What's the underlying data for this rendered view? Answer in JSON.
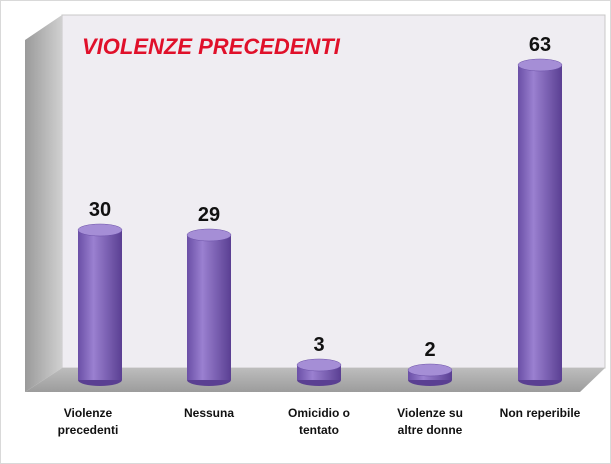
{
  "chart_data": {
    "type": "bar",
    "title": "VIOLENZE PRECEDENTI",
    "categories": [
      "Violenze precedenti",
      "Nessuna",
      "Omicidio o tentato",
      "Violenze su altre donne",
      "Non reperibile"
    ],
    "values": [
      30,
      29,
      3,
      2,
      63
    ],
    "color": "#7b5eb5"
  }
}
